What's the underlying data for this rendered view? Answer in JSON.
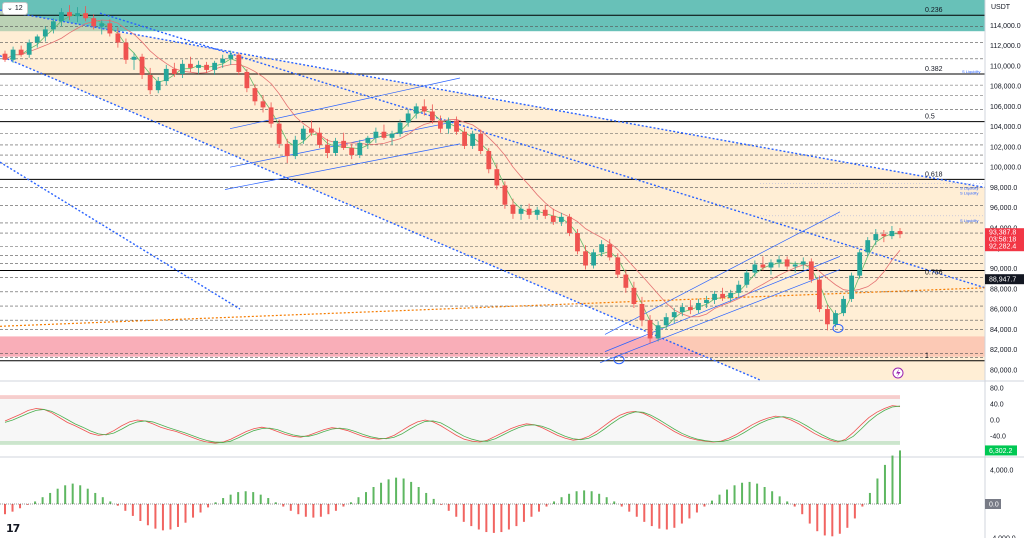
{
  "header": {
    "interval": "12",
    "currency": "USDT"
  },
  "colors": {
    "up": "#26a69a",
    "down": "#ef5350",
    "channel": "#2962ff",
    "orange_zone": "#ffe0b2",
    "teal_zone": "#4db6ac",
    "red_zone": "#f8a5b0",
    "price_tag": "#f23645",
    "stoch_k": "#ef5350",
    "stoch_d": "#4caf50",
    "macd_pos": "#4caf50",
    "macd_neg": "#ef5350"
  },
  "price_axis": {
    "ticks": [
      "114,000.0",
      "112,000.0",
      "110,000.0",
      "108,000.0",
      "106,000.0",
      "104,000.0",
      "102,000.0",
      "100,000.0",
      "98,000.0",
      "96,000.0",
      "94,000.0",
      "92,000.0",
      "90,000.0",
      "88,000.0",
      "86,000.0",
      "84,000.0",
      "82,000.0",
      "80,000.0"
    ],
    "tick_values": [
      114000,
      112000,
      110000,
      108000,
      106000,
      104000,
      102000,
      100000,
      98000,
      96000,
      94000,
      92000,
      90000,
      88000,
      86000,
      84000,
      82000,
      80000
    ],
    "last_price": "93,387.8",
    "countdown": "03:58:18",
    "prev_close": "92,282.4",
    "level_tag": "88,947.7"
  },
  "fib_levels": [
    {
      "label": "0.236",
      "value": 115000
    },
    {
      "label": "0.382",
      "value": 109200
    },
    {
      "label": "0.5",
      "value": 104500
    },
    {
      "label": "0.618",
      "value": 98800
    },
    {
      "label": "0.786",
      "value": 89800
    },
    {
      "label": "1",
      "value": 80900
    }
  ],
  "liquidity_labels": [
    "S Liquidity",
    "S Liquidity",
    "S Liquidity",
    "S Liquidity"
  ],
  "oscillator_axis": {
    "ticks": [
      "80.0",
      "40.0",
      "0.0",
      "-40.0"
    ],
    "tick_values": [
      80,
      40,
      0,
      -40
    ]
  },
  "macd_axis": {
    "ticks": [
      "4,000.0",
      "0.0",
      "-4,000.0"
    ],
    "tick_values": [
      4000,
      0,
      -4000
    ],
    "current": "6,302.2"
  },
  "chart_data": {
    "type": "candlestick",
    "symbol_quote": "USDT",
    "y_range": [
      79000,
      116500
    ],
    "candles": [
      [
        111200,
        111500,
        110400,
        110600
      ],
      [
        110600,
        111900,
        110300,
        111600
      ],
      [
        111600,
        112000,
        110900,
        111100
      ],
      [
        111100,
        112600,
        110800,
        112300
      ],
      [
        112300,
        113100,
        111800,
        112900
      ],
      [
        112900,
        113900,
        112400,
        113600
      ],
      [
        113600,
        114700,
        113200,
        114400
      ],
      [
        114400,
        115700,
        113900,
        115300
      ],
      [
        115300,
        116000,
        114500,
        114900
      ],
      [
        114900,
        115800,
        114300,
        115200
      ],
      [
        115200,
        115900,
        114400,
        114700
      ],
      [
        114700,
        115100,
        113600,
        113900
      ],
      [
        113900,
        114500,
        113100,
        114200
      ],
      [
        114200,
        114600,
        112900,
        113200
      ],
      [
        113200,
        113800,
        111800,
        112300
      ],
      [
        112300,
        112700,
        110200,
        110600
      ],
      [
        110600,
        111300,
        109600,
        110900
      ],
      [
        110900,
        111200,
        108700,
        109100
      ],
      [
        109100,
        109800,
        107200,
        107600
      ],
      [
        107600,
        108900,
        107300,
        108500
      ],
      [
        108500,
        110100,
        108100,
        109700
      ],
      [
        109700,
        110300,
        108900,
        109200
      ],
      [
        109200,
        110600,
        108800,
        110200
      ],
      [
        110200,
        110900,
        109400,
        109800
      ],
      [
        109800,
        110500,
        109200,
        110100
      ],
      [
        110100,
        110400,
        109300,
        109600
      ],
      [
        109600,
        110500,
        109100,
        110300
      ],
      [
        110300,
        111100,
        109800,
        110700
      ],
      [
        110700,
        111500,
        110100,
        111100
      ],
      [
        111100,
        111300,
        109100,
        109400
      ],
      [
        109400,
        109700,
        107400,
        107800
      ],
      [
        107800,
        108200,
        106100,
        106500
      ],
      [
        106500,
        107100,
        105400,
        105900
      ],
      [
        105900,
        106400,
        103900,
        104300
      ],
      [
        104300,
        104700,
        101900,
        102300
      ],
      [
        102300,
        102800,
        100400,
        101100
      ],
      [
        101100,
        103100,
        100800,
        102700
      ],
      [
        102700,
        104100,
        102300,
        103800
      ],
      [
        103800,
        104600,
        103100,
        103400
      ],
      [
        103400,
        103900,
        101900,
        102200
      ],
      [
        102200,
        102800,
        100900,
        101400
      ],
      [
        101400,
        102900,
        101100,
        102600
      ],
      [
        102600,
        103400,
        101700,
        101900
      ],
      [
        101900,
        102300,
        100800,
        101200
      ],
      [
        101200,
        102700,
        100900,
        102400
      ],
      [
        102400,
        103100,
        101800,
        102900
      ],
      [
        102900,
        103900,
        102400,
        103500
      ],
      [
        103500,
        104200,
        102700,
        102900
      ],
      [
        102900,
        103600,
        102200,
        103300
      ],
      [
        103300,
        104700,
        103000,
        104400
      ],
      [
        104400,
        105700,
        104000,
        105300
      ],
      [
        105300,
        106300,
        104800,
        106000
      ],
      [
        106000,
        106700,
        105100,
        105500
      ],
      [
        105500,
        106200,
        104300,
        104600
      ],
      [
        104600,
        105100,
        103400,
        103800
      ],
      [
        103800,
        104900,
        103300,
        104600
      ],
      [
        104600,
        105000,
        103200,
        103500
      ],
      [
        103500,
        103900,
        101800,
        102100
      ],
      [
        102100,
        103600,
        101800,
        103300
      ],
      [
        103300,
        103700,
        101300,
        101600
      ],
      [
        101600,
        101900,
        99400,
        99800
      ],
      [
        99800,
        100300,
        97800,
        98200
      ],
      [
        98200,
        98600,
        95900,
        96300
      ],
      [
        96300,
        96900,
        94900,
        95400
      ],
      [
        95400,
        96300,
        94800,
        95900
      ],
      [
        95900,
        96400,
        94900,
        95300
      ],
      [
        95300,
        96100,
        94800,
        95800
      ],
      [
        95800,
        96300,
        94900,
        95200
      ],
      [
        95200,
        95900,
        94300,
        94600
      ],
      [
        94600,
        95500,
        94200,
        95100
      ],
      [
        95100,
        95400,
        93200,
        93500
      ],
      [
        93500,
        93900,
        91400,
        91700
      ],
      [
        91700,
        92300,
        89900,
        90300
      ],
      [
        90300,
        91900,
        90000,
        91600
      ],
      [
        91600,
        92800,
        91200,
        92400
      ],
      [
        92400,
        92900,
        90800,
        91100
      ],
      [
        91100,
        91500,
        89100,
        89400
      ],
      [
        89400,
        89900,
        87600,
        88100
      ],
      [
        88100,
        88700,
        86100,
        86500
      ],
      [
        86500,
        87200,
        84300,
        84900
      ],
      [
        84900,
        85400,
        82600,
        83100
      ],
      [
        83100,
        84800,
        82800,
        84400
      ],
      [
        84400,
        85600,
        84000,
        85200
      ],
      [
        85200,
        86100,
        84600,
        85700
      ],
      [
        85700,
        86600,
        85300,
        86200
      ],
      [
        86200,
        86900,
        85500,
        85900
      ],
      [
        85900,
        87000,
        85600,
        86600
      ],
      [
        86600,
        87300,
        86100,
        86900
      ],
      [
        86900,
        87800,
        86500,
        87500
      ],
      [
        87500,
        88100,
        86800,
        87100
      ],
      [
        87100,
        87900,
        86700,
        87600
      ],
      [
        87600,
        88800,
        87200,
        88400
      ],
      [
        88400,
        89900,
        88100,
        89600
      ],
      [
        89600,
        90800,
        89200,
        90400
      ],
      [
        90400,
        91200,
        89800,
        90100
      ],
      [
        90100,
        90900,
        89400,
        90600
      ],
      [
        90600,
        91300,
        90100,
        90900
      ],
      [
        90900,
        91200,
        89900,
        90200
      ],
      [
        90200,
        90700,
        89600,
        90400
      ],
      [
        90400,
        91100,
        89900,
        90700
      ],
      [
        90700,
        91000,
        88600,
        88900
      ],
      [
        88900,
        89300,
        85700,
        86000
      ],
      [
        86000,
        86400,
        83900,
        84500
      ],
      [
        84500,
        85900,
        84200,
        85600
      ],
      [
        85600,
        87300,
        85300,
        87000
      ],
      [
        87000,
        89600,
        86700,
        89300
      ],
      [
        89300,
        91900,
        89000,
        91600
      ],
      [
        91600,
        93100,
        91200,
        92800
      ],
      [
        92800,
        93900,
        92300,
        93400
      ],
      [
        93400,
        93800,
        92600,
        93200
      ],
      [
        93200,
        94200,
        92900,
        93700
      ],
      [
        93700,
        94000,
        93000,
        93387.8
      ]
    ],
    "stochastic": {
      "k": [
        48,
        55,
        62,
        70,
        74,
        72,
        65,
        55,
        45,
        38,
        30,
        22,
        18,
        20,
        28,
        38,
        46,
        50,
        48,
        42,
        35,
        30,
        26,
        20,
        14,
        8,
        4,
        2,
        4,
        10,
        18,
        26,
        32,
        35,
        32,
        26,
        20,
        16,
        14,
        18,
        24,
        30,
        34,
        32,
        28,
        22,
        16,
        12,
        10,
        12,
        18,
        28,
        38,
        46,
        50,
        46,
        38,
        28,
        18,
        10,
        6,
        4,
        8,
        16,
        24,
        32,
        38,
        42,
        40,
        34,
        26,
        18,
        12,
        8,
        10,
        16,
        26,
        38,
        50,
        60,
        66,
        68,
        64,
        56,
        46,
        36,
        26,
        18,
        12,
        8,
        6,
        4,
        6,
        12,
        20,
        30,
        40,
        48,
        54,
        58,
        56,
        50,
        42,
        32,
        22,
        14,
        8,
        4,
        10,
        24,
        40,
        55,
        66,
        74,
        80,
        78
      ],
      "d": [
        45,
        50,
        57,
        64,
        70,
        72,
        68,
        60,
        51,
        42,
        35,
        27,
        21,
        19,
        23,
        31,
        40,
        46,
        48,
        46,
        40,
        34,
        29,
        24,
        18,
        12,
        7,
        4,
        3,
        6,
        13,
        21,
        28,
        32,
        33,
        30,
        24,
        19,
        16,
        16,
        20,
        26,
        31,
        33,
        31,
        26,
        20,
        15,
        12,
        11,
        14,
        21,
        31,
        40,
        47,
        48,
        44,
        35,
        25,
        16,
        10,
        6,
        6,
        11,
        19,
        27,
        34,
        39,
        40,
        37,
        31,
        23,
        16,
        11,
        9,
        12,
        20,
        31,
        43,
        54,
        62,
        67,
        66,
        60,
        51,
        41,
        31,
        22,
        15,
        10,
        7,
        5,
        5,
        8,
        15,
        24,
        34,
        43,
        50,
        55,
        57,
        54,
        47,
        38,
        28,
        19,
        11,
        6,
        7,
        16,
        31,
        47,
        60,
        70,
        77,
        79
      ]
    },
    "macd": [
      -1200,
      -900,
      -500,
      -100,
      300,
      800,
      1300,
      1800,
      2200,
      2400,
      2200,
      1800,
      1300,
      800,
      300,
      -200,
      -800,
      -1400,
      -2000,
      -2500,
      -2900,
      -3100,
      -3000,
      -2700,
      -2200,
      -1600,
      -1000,
      -400,
      200,
      700,
      1100,
      1400,
      1500,
      1400,
      1100,
      700,
      200,
      -300,
      -800,
      -1200,
      -1500,
      -1600,
      -1500,
      -1200,
      -800,
      -300,
      200,
      800,
      1400,
      2000,
      2500,
      2900,
      3100,
      3000,
      2600,
      2000,
      1300,
      600,
      -100,
      -800,
      -1500,
      -2100,
      -2600,
      -3000,
      -3300,
      -3400,
      -3300,
      -3000,
      -2600,
      -2100,
      -1500,
      -900,
      -300,
      300,
      800,
      1200,
      1500,
      1600,
      1500,
      1200,
      800,
      300,
      -300,
      -900,
      -1500,
      -2100,
      -2600,
      -2900,
      -3000,
      -2800,
      -2300,
      -1700,
      -1000,
      -300,
      400,
      1100,
      1700,
      2200,
      2500,
      2600,
      2400,
      2000,
      1500,
      900,
      300,
      -300,
      -1200,
      -2300,
      -3200,
      -3700,
      -3800,
      -3500,
      -2800,
      -1700,
      -300,
      1300,
      3000,
      4600,
      5700,
      6302.2
    ]
  }
}
